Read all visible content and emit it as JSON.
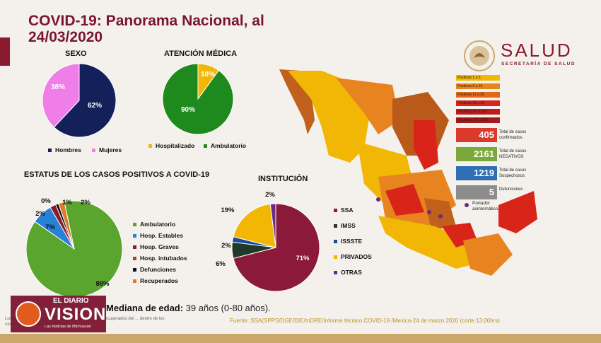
{
  "page": {
    "title": "COVID-19: Panorama Nacional, al 24/03/2020",
    "logo": {
      "name": "SALUD",
      "subtitle": "SECRETARÍA DE SALUD"
    },
    "mediana": {
      "label": "Mediana de edad:",
      "value": "39 años (0-80 años)."
    },
    "fuente": "Fuente: SSA(SPPS/DGE/DIE/InDRE/Informe técnico.COVID-19 /Mexico-24 de marzo 2020 (corte 13:00hrs)",
    "fine_print": "Los casos ambulatorios... estatus, incluye los casos recuperados del ... dentro de los casos en las otras categorías",
    "watermark": {
      "top": "EL DIARIO",
      "big": "VISION",
      "sub": "Las Noticias de Michoacán"
    },
    "map_scale": [
      "Positivos 1 a 5",
      "Positivos 6 a 10",
      "Positivos 11 a 20",
      "Positivos 21 a 50",
      "Positivos 51 a 100",
      "Positivos 101 a 200"
    ],
    "stats": [
      {
        "value": "405",
        "label": "Total de casos confirmados",
        "color": "#d93a2b"
      },
      {
        "value": "2161",
        "label": "Total de casos NEGATIVOS",
        "color": "#7aa83b"
      },
      {
        "value": "1219",
        "label": "Total de casos Sospechosos",
        "color": "#2f6fb5"
      },
      {
        "value": "5",
        "label": "Defunciones",
        "color": "#8c8c8c"
      }
    ],
    "portador_label": "Portador asintomático"
  },
  "chart_data": [
    {
      "type": "pie",
      "title": "SEXO",
      "categories": [
        "Hombres",
        "Mujeres"
      ],
      "values": [
        62,
        38
      ],
      "labels": [
        "62%",
        "38%"
      ],
      "colors": [
        "#14205a",
        "#f07ee8"
      ]
    },
    {
      "type": "pie",
      "title": "ATENCIÓN MÉDICA",
      "categories": [
        "Hospitalizado",
        "Ambulatorio"
      ],
      "values": [
        10,
        90
      ],
      "labels": [
        "10%",
        "90%"
      ],
      "colors": [
        "#f2b705",
        "#1e8a1e"
      ]
    },
    {
      "type": "pie",
      "title": "ESTATUS DE LOS CASOS POSITIVOS A COVID-19",
      "categories": [
        "Ambulatorio",
        "Hosp. Estables",
        "Hosp. Graves",
        "Hosp. intubados",
        "Defunciones",
        "Recuperados"
      ],
      "values": [
        88,
        7,
        2,
        0,
        1,
        2
      ],
      "labels": [
        "88%",
        "7%",
        "2%",
        "0%",
        "1%",
        "2%"
      ],
      "colors": [
        "#5aa52e",
        "#2a7fd6",
        "#8b1a2b",
        "#c0392b",
        "#111111",
        "#e07b2d"
      ]
    },
    {
      "type": "pie",
      "title": "INSTITUCIÓN",
      "categories": [
        "SSA",
        "IMSS",
        "ISSSTE",
        "PRIVADOS",
        "OTRAS"
      ],
      "values": [
        71,
        6,
        2,
        19,
        2
      ],
      "labels": [
        "71%",
        "6%",
        "2%",
        "19%",
        "2%"
      ],
      "colors": [
        "#8b1a3a",
        "#1f3a2a",
        "#1d4a9a",
        "#f2b705",
        "#6a2a8a"
      ]
    }
  ]
}
